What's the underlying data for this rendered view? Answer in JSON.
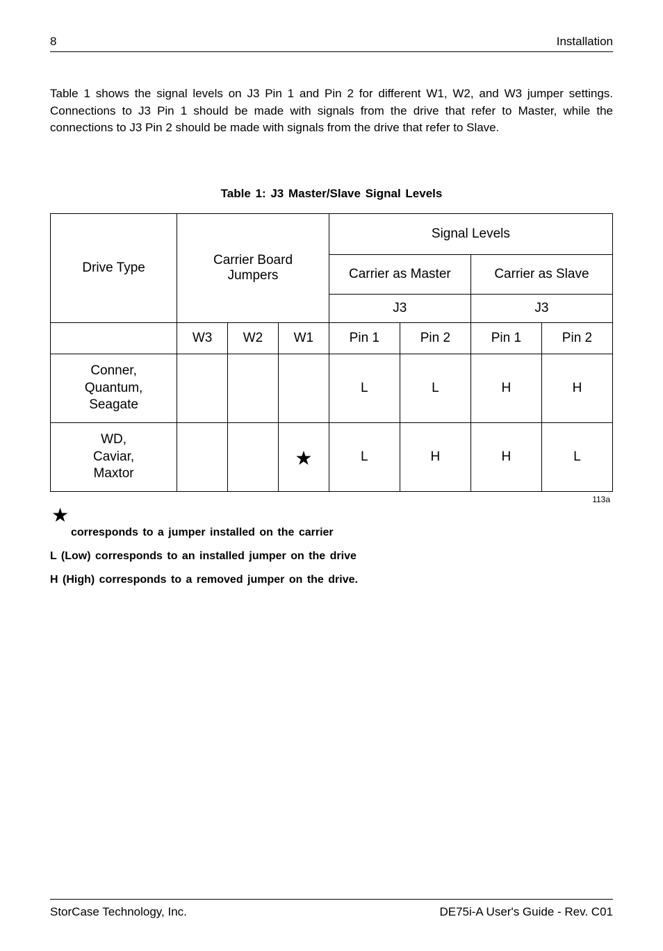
{
  "header": {
    "page_number": "8",
    "section": "Installation"
  },
  "intro": "Table 1 shows the signal levels on J3 Pin 1 and Pin 2 for different W1, W2, and W3 jumper settings.  Connections to J3 Pin 1 should be made with signals from the drive that refer to Master, while the connections to J3 Pin 2 should be made with signals from the drive that refer to Slave.",
  "table": {
    "title": "Table  1:   J3  Master/Slave  Signal  Levels",
    "drive_type_label": "Drive Type",
    "carrier_board_label_line1": "Carrier Board",
    "carrier_board_label_line2": "Jumpers",
    "signal_levels_label": "Signal Levels",
    "carrier_master_label": "Carrier as Master",
    "carrier_slave_label": "Carrier as Slave",
    "j3_label_a": "J3",
    "j3_label_b": "J3",
    "col_w3": "W3",
    "col_w2": "W2",
    "col_w1": "W1",
    "col_pin1_a": "Pin 1",
    "col_pin2_a": "Pin 2",
    "col_pin1_b": "Pin 1",
    "col_pin2_b": "Pin 2",
    "row1_drive_l1": "Conner,",
    "row1_drive_l2": "Quantum,",
    "row1_drive_l3": "Seagate",
    "row1_w3": "",
    "row1_w2": "",
    "row1_w1": "",
    "row1_p1a": "L",
    "row1_p2a": "L",
    "row1_p1b": "H",
    "row1_p2b": "H",
    "row2_drive_l1": "WD,",
    "row2_drive_l2": "Caviar,",
    "row2_drive_l3": "Maxtor",
    "row2_w3": "",
    "row2_w2": "",
    "row2_w1_star": "★",
    "row2_p1a": "L",
    "row2_p2a": "H",
    "row2_p1b": "H",
    "row2_p2b": "L",
    "annot": "113a"
  },
  "legend": {
    "star": "★",
    "line1": "corresponds  to  a  jumper  installed  on  the  carrier",
    "line2": "L  (Low)  corresponds  to  an  installed  jumper  on  the  drive",
    "line3": "H  (High)  corresponds  to  a  removed  jumper  on  the  drive."
  },
  "footer": {
    "left": "StorCase Technology, Inc.",
    "right": "DE75i-A User's Guide - Rev. C01"
  }
}
